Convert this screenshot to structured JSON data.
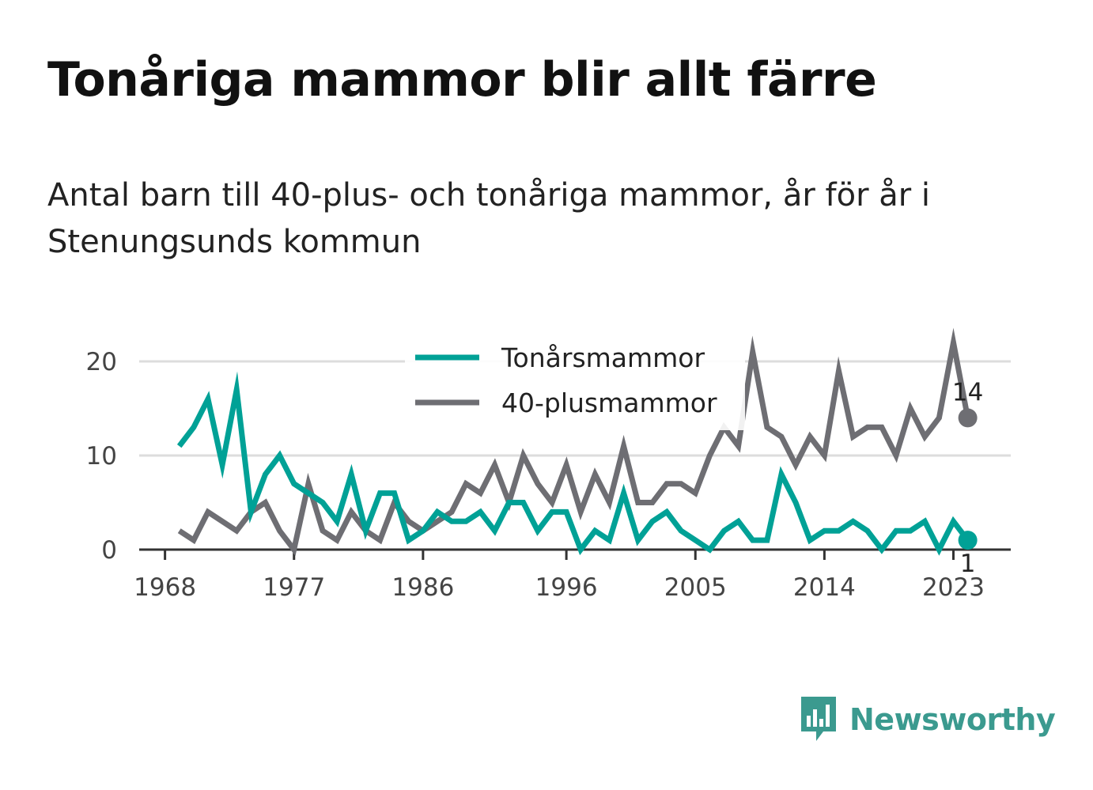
{
  "title": "Tonåriga mammor blir allt färre",
  "subtitle": "Antal barn till 40-plus- och tonåriga mammor, år för år i Stenungsunds kommun",
  "brand": {
    "name": "Newsworthy",
    "icon": "newsworthy-logo-icon",
    "color": "#3b9a8f"
  },
  "colors": {
    "teal": "#00a196",
    "gray": "#6e6e73",
    "grid": "#dddddd",
    "axis": "#333333"
  },
  "chart_data": {
    "type": "line",
    "x": [
      1969,
      1970,
      1971,
      1972,
      1973,
      1974,
      1975,
      1976,
      1977,
      1978,
      1979,
      1980,
      1981,
      1982,
      1983,
      1984,
      1985,
      1986,
      1987,
      1988,
      1989,
      1990,
      1991,
      1992,
      1993,
      1994,
      1995,
      1996,
      1997,
      1998,
      1999,
      2000,
      2001,
      2002,
      2003,
      2004,
      2005,
      2006,
      2007,
      2008,
      2009,
      2010,
      2011,
      2012,
      2013,
      2014,
      2015,
      2016,
      2017,
      2018,
      2019,
      2020,
      2021,
      2022,
      2023,
      2024
    ],
    "series": [
      {
        "name": "Tonårsmammor",
        "color": "#00a196",
        "values": [
          11,
          13,
          16,
          9,
          17,
          4,
          8,
          10,
          7,
          6,
          5,
          3,
          8,
          2,
          6,
          6,
          1,
          2,
          4,
          3,
          3,
          4,
          2,
          5,
          5,
          2,
          4,
          4,
          0,
          2,
          1,
          6,
          1,
          3,
          4,
          2,
          1,
          0,
          2,
          3,
          1,
          1,
          8,
          5,
          1,
          2,
          2,
          3,
          2,
          0,
          2,
          2,
          3,
          0,
          3,
          1
        ]
      },
      {
        "name": "40-plusmammor",
        "color": "#6e6e73",
        "values": [
          2,
          1,
          4,
          3,
          2,
          4,
          5,
          2,
          0,
          7,
          2,
          1,
          4,
          2,
          1,
          5,
          3,
          2,
          3,
          4,
          7,
          6,
          9,
          5,
          10,
          7,
          5,
          9,
          4,
          8,
          5,
          11,
          5,
          5,
          7,
          7,
          6,
          10,
          13,
          11,
          21,
          13,
          12,
          9,
          12,
          10,
          19,
          12,
          13,
          13,
          10,
          15,
          12,
          14,
          22,
          14
        ]
      }
    ],
    "xticks": [
      "1968",
      "1977",
      "1986",
      "1996",
      "2005",
      "2014",
      "2023"
    ],
    "xtick_values": [
      1968,
      1977,
      1986,
      1996,
      2005,
      2014,
      2023
    ],
    "yticks": [
      "0",
      "10",
      "20"
    ],
    "ytick_values": [
      0,
      10,
      20
    ],
    "xlim": [
      1966.2,
      2027.0
    ],
    "ylim": [
      0,
      20
    ],
    "grid": true,
    "legend_position": "top-center",
    "end_labels": [
      {
        "series": "40-plusmammor",
        "text": "14"
      },
      {
        "series": "Tonårsmammor",
        "text": "1"
      }
    ]
  }
}
